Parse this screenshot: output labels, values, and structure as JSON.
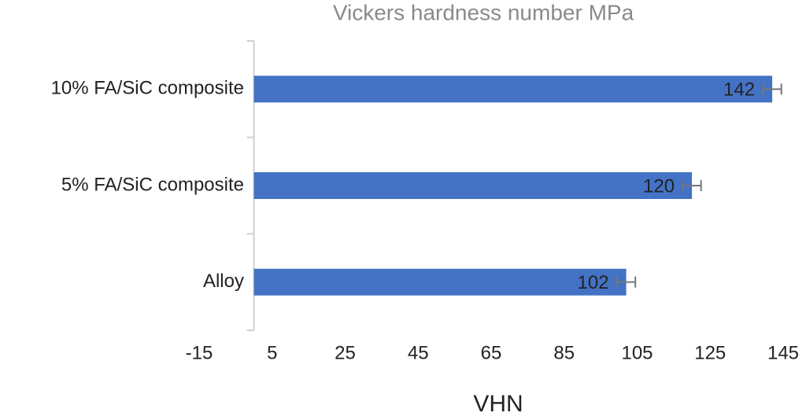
{
  "chart_data": {
    "type": "barh",
    "title": "Vickers hardness number MPa",
    "xlabel": "VHN",
    "categories": [
      "10% FA/SiC composite",
      "5% FA/SiC composite",
      "Alloy"
    ],
    "values": [
      142,
      120,
      102
    ],
    "errors": [
      2.5,
      2.5,
      2.5
    ],
    "color": "#4472c4",
    "error_color": "#777777",
    "xlim": [
      -15,
      145
    ],
    "xticks": [
      -15,
      5,
      25,
      45,
      65,
      85,
      105,
      125,
      145
    ],
    "grid": false
  }
}
